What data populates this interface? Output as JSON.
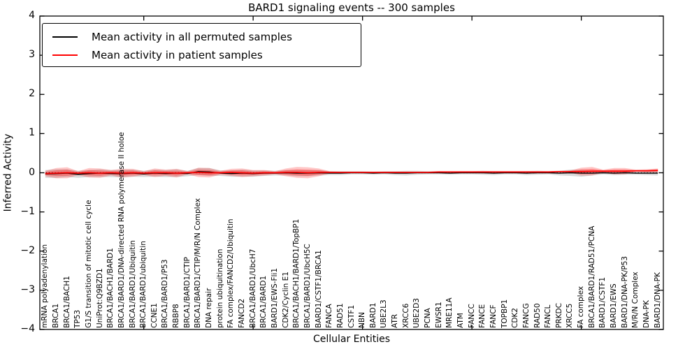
{
  "figure": {
    "title": "BARD1 signaling events -- 300 samples",
    "xlabel": "Cellular Entities",
    "ylabel": "Inferred Activity"
  },
  "legend": {
    "items": [
      {
        "label": "Mean activity in all permuted samples",
        "color": "#000000"
      },
      {
        "label": "Mean activity in patient samples",
        "color": "#ff0000"
      }
    ]
  },
  "axes": {
    "y_tick_labels": [
      "4",
      "3",
      "2",
      "1",
      "0",
      "−1",
      "−2",
      "−3",
      "−4"
    ],
    "y_tick_values": [
      4,
      3,
      2,
      1,
      0,
      -1,
      -2,
      -3,
      -4
    ],
    "x_major_tick_indices": [
      9,
      19,
      29,
      39,
      49
    ]
  },
  "chart_data": {
    "type": "line",
    "title": "BARD1 signaling events -- 300 samples",
    "xlabel": "Cellular Entities",
    "ylabel": "Inferred Activity",
    "ylim": [
      -4,
      4
    ],
    "grid": false,
    "legend_position": "upper left",
    "zero_reference_line": 0,
    "categories": [
      "mRNA polyadenylation",
      "BRCA1",
      "BRCA1/BACH1",
      "TP53",
      "G1/S transition of mitotic cell cycle",
      "UniProt:Q9BZD1",
      "BRCA1/BACH1/BARD1",
      "BRCA1/BARD1/DNA-directed RNA polymerase II holoe",
      "BRCA1/BARD1/Ubiquitin",
      "BRCA1/BARD1/ubiquitin",
      "CCNE1",
      "BRCA1/BARD1/P53",
      "RBBP8",
      "BRCA1/BARD1/CTIP",
      "BRCA1/BARD1/CTIP/M/R/N Complex",
      "DNA repair",
      "protein ubiquitination",
      "FA complex/FANCD2/Ubiquitin",
      "FANCD2",
      "BRCA1/BARD1/UbcH7",
      "BRCA1/BARD1",
      "BARD1/EWS-Fli1",
      "CDK2/Cyclin E1",
      "BRCA1/BACH1/BARD1/TopBP1",
      "BRCA1/BARD1/UbcH5C",
      "BARD1/CSTF1/BRCA1",
      "FANCA",
      "RAD51",
      "CSTF1",
      "NBN",
      "BARD1",
      "UBE2L3",
      "ATR",
      "XRCC6",
      "UBE2D3",
      "PCNA",
      "EWSR1",
      "MRE11A",
      "ATM",
      "FANCC",
      "FANCE",
      "FANCF",
      "TOPBP1",
      "CDK2",
      "FANCG",
      "RAD50",
      "FANCL",
      "PRKDC",
      "XRCC5",
      "FA complex",
      "BRCA1/BARD1/RAD51/PCNA",
      "BARD1/CSTF1",
      "BARD1/EWS",
      "BARD1/DNA-PK/P53",
      "M/R/N Complex",
      "DNA-PK",
      "BARD1/DNA-PK"
    ],
    "series": [
      {
        "name": "Mean activity in all permuted samples",
        "color": "#000000",
        "band_color": "#000000",
        "band_opacity": 0.15,
        "values": [
          -0.03,
          -0.02,
          -0.01,
          -0.04,
          -0.02,
          -0.01,
          -0.02,
          -0.02,
          -0.01,
          -0.03,
          -0.01,
          -0.02,
          -0.01,
          -0.02,
          0.03,
          0.02,
          -0.01,
          -0.02,
          -0.01,
          -0.02,
          -0.01,
          -0.01,
          0,
          -0.01,
          -0.01,
          0,
          -0.01,
          -0.01,
          0,
          0,
          -0.01,
          0,
          -0.01,
          -0.01,
          0,
          0,
          0,
          -0.01,
          0,
          0,
          0,
          -0.01,
          0,
          0,
          -0.01,
          0,
          0,
          -0.01,
          0,
          -0.01,
          -0.01,
          0,
          -0.01,
          0,
          -0.01,
          -0.01,
          -0.01
        ],
        "band_halfwidth": [
          0.1,
          0.11,
          0.1,
          0.09,
          0.09,
          0.1,
          0.09,
          0.1,
          0.09,
          0.08,
          0.09,
          0.09,
          0.1,
          0.07,
          0.09,
          0.1,
          0.07,
          0.08,
          0.09,
          0.08,
          0.07,
          0.06,
          0.07,
          0.08,
          0.08,
          0.07,
          0.05,
          0.05,
          0.04,
          0.04,
          0.04,
          0.04,
          0.05,
          0.06,
          0.05,
          0.04,
          0.04,
          0.04,
          0.04,
          0.04,
          0.05,
          0.05,
          0.04,
          0.04,
          0.05,
          0.05,
          0.04,
          0.06,
          0.08,
          0.09,
          0.06,
          0.04,
          0.05,
          0.05,
          0.04,
          0.05,
          0.06
        ]
      },
      {
        "name": "Mean activity in patient samples",
        "color": "#ff0000",
        "band_color": "#ff0000",
        "band_opacity": 0.22,
        "values": [
          -0.02,
          -0.01,
          0,
          -0.01,
          0,
          -0.01,
          0,
          -0.01,
          0,
          -0.01,
          0,
          0,
          -0.01,
          0,
          0.01,
          0,
          0,
          0.01,
          0,
          -0.01,
          0,
          0,
          0.01,
          0.01,
          0,
          0.01,
          0.01,
          0.01,
          0.01,
          0.01,
          0.01,
          0.01,
          0.01,
          0.01,
          0.01,
          0.01,
          0.02,
          0.02,
          0.02,
          0.02,
          0.02,
          0.02,
          0.02,
          0.02,
          0.02,
          0.02,
          0.02,
          0.03,
          0.03,
          0.03,
          0.04,
          0.04,
          0.04,
          0.04,
          0.05,
          0.05,
          0.06
        ],
        "band_halfwidth": [
          0.07,
          0.13,
          0.14,
          0.05,
          0.12,
          0.12,
          0.07,
          0.11,
          0.1,
          0.05,
          0.11,
          0.08,
          0.11,
          0.04,
          0.12,
          0.12,
          0.05,
          0.09,
          0.11,
          0.08,
          0.07,
          0.04,
          0.1,
          0.14,
          0.14,
          0.1,
          0.03,
          0.02,
          0.02,
          0.02,
          0.02,
          0.02,
          0.02,
          0.02,
          0.02,
          0.02,
          0.02,
          0.02,
          0.02,
          0.02,
          0.02,
          0.02,
          0.02,
          0.02,
          0.02,
          0.02,
          0.02,
          0.02,
          0.03,
          0.1,
          0.11,
          0.04,
          0.08,
          0.08,
          0.03,
          0.04,
          0.05
        ]
      }
    ]
  }
}
